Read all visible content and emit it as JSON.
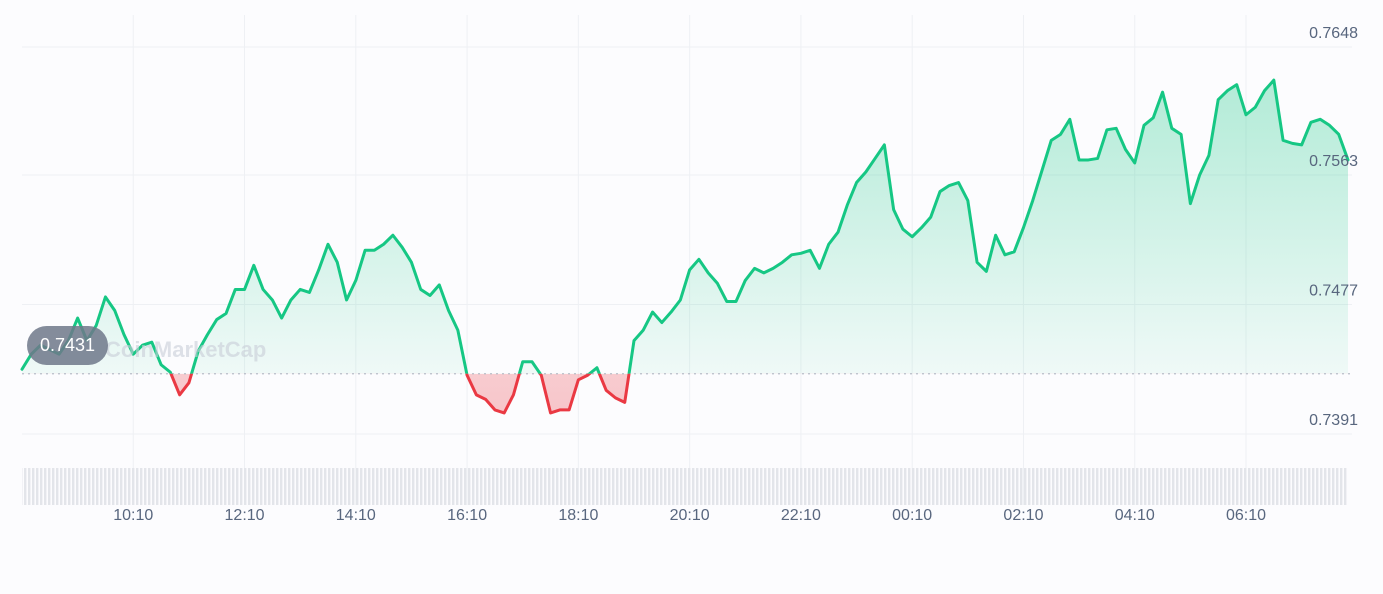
{
  "chart_data": {
    "type": "line",
    "watermark": "CoinMarketCap",
    "x": [
      "08:10",
      "08:20",
      "08:30",
      "08:40",
      "08:50",
      "09:00",
      "09:10",
      "09:20",
      "09:30",
      "09:40",
      "09:50",
      "10:00",
      "10:10",
      "10:20",
      "10:30",
      "10:40",
      "10:50",
      "11:00",
      "11:10",
      "11:20",
      "11:30",
      "11:40",
      "11:50",
      "12:00",
      "12:10",
      "12:20",
      "12:30",
      "12:40",
      "12:50",
      "13:00",
      "13:10",
      "13:20",
      "13:30",
      "13:40",
      "13:50",
      "14:00",
      "14:10",
      "14:20",
      "14:30",
      "14:40",
      "14:50",
      "15:00",
      "15:10",
      "15:20",
      "15:30",
      "15:40",
      "15:50",
      "16:00",
      "16:10",
      "16:20",
      "16:30",
      "16:40",
      "16:50",
      "17:00",
      "17:10",
      "17:20",
      "17:30",
      "17:40",
      "17:50",
      "18:00",
      "18:10",
      "18:20",
      "18:30",
      "18:40",
      "18:50",
      "19:00",
      "19:10",
      "19:20",
      "19:30",
      "19:40",
      "19:50",
      "20:00",
      "20:10",
      "20:20",
      "20:30",
      "20:40",
      "20:50",
      "21:00",
      "21:10",
      "21:20",
      "21:30",
      "21:40",
      "21:50",
      "22:00",
      "22:10",
      "22:20",
      "22:30",
      "22:40",
      "22:50",
      "23:00",
      "23:10",
      "23:20",
      "23:30",
      "23:40",
      "23:50",
      "00:00",
      "00:10",
      "00:20",
      "00:30",
      "00:40",
      "00:50",
      "01:00",
      "01:10",
      "01:20",
      "01:30",
      "01:40",
      "01:50",
      "02:00",
      "02:10",
      "02:20",
      "02:30",
      "02:40",
      "02:50",
      "03:00",
      "03:10",
      "03:20",
      "03:30",
      "03:40",
      "03:50",
      "04:00",
      "04:10",
      "04:20",
      "04:30",
      "04:40",
      "04:50",
      "05:00",
      "05:10",
      "05:20",
      "05:30",
      "05:40",
      "05:50",
      "06:00",
      "06:10",
      "06:20",
      "06:30",
      "06:40",
      "06:50",
      "07:00",
      "07:10",
      "07:20",
      "07:30",
      "07:40",
      "07:50",
      "08:00"
    ],
    "series": [
      {
        "color": "#16c784",
        "below_color": "#ea3943",
        "values": [
          0.7434,
          0.7444,
          0.745,
          0.7447,
          0.7444,
          0.7453,
          0.7468,
          0.7453,
          0.7463,
          0.7482,
          0.7473,
          0.7457,
          0.7444,
          0.745,
          0.7452,
          0.7437,
          0.7432,
          0.7417,
          0.7425,
          0.7446,
          0.7457,
          0.7467,
          0.7471,
          0.7487,
          0.7487,
          0.7503,
          0.7487,
          0.748,
          0.7468,
          0.748,
          0.7487,
          0.7485,
          0.75,
          0.7517,
          0.7505,
          0.748,
          0.7493,
          0.7513,
          0.7513,
          0.7517,
          0.7523,
          0.7515,
          0.7505,
          0.7487,
          0.7483,
          0.749,
          0.7473,
          0.746,
          0.743,
          0.7417,
          0.7414,
          0.7407,
          0.7405,
          0.7417,
          0.7439,
          0.7439,
          0.743,
          0.7405,
          0.7407,
          0.7407,
          0.7427,
          0.743,
          0.7435,
          0.742,
          0.7415,
          0.7412,
          0.7453,
          0.746,
          0.7472,
          0.7465,
          0.7472,
          0.748,
          0.75,
          0.7507,
          0.7498,
          0.7491,
          0.7479,
          0.7479,
          0.7493,
          0.7501,
          0.7498,
          0.7501,
          0.7505,
          0.751,
          0.7511,
          0.7513,
          0.7501,
          0.7517,
          0.7525,
          0.7543,
          0.7558,
          0.7565,
          0.7574,
          0.7583,
          0.754,
          0.7527,
          0.7522,
          0.7528,
          0.7535,
          0.7552,
          0.7556,
          0.7558,
          0.7546,
          0.7505,
          0.7499,
          0.7523,
          0.751,
          0.7512,
          0.7528,
          0.7546,
          0.7566,
          0.7586,
          0.759,
          0.76,
          0.7573,
          0.7573,
          0.7574,
          0.7593,
          0.7594,
          0.758,
          0.7571,
          0.7596,
          0.7601,
          0.7618,
          0.7594,
          0.759,
          0.7544,
          0.7563,
          0.7576,
          0.7613,
          0.7619,
          0.7623,
          0.7603,
          0.7608,
          0.7619,
          0.7626,
          0.7586,
          0.7584,
          0.7583,
          0.7598,
          0.76,
          0.7596,
          0.759,
          0.7573
        ]
      }
    ],
    "reference": {
      "value": 0.7431
    },
    "ylim": [
      0.7391,
      0.7648
    ],
    "yticks": [
      0.7391,
      0.7477,
      0.7563,
      0.7648
    ],
    "xticks": [
      "10:10",
      "12:10",
      "14:10",
      "16:10",
      "18:10",
      "20:10",
      "22:10",
      "00:10",
      "02:10",
      "04:10",
      "06:10"
    ],
    "grid": true
  }
}
